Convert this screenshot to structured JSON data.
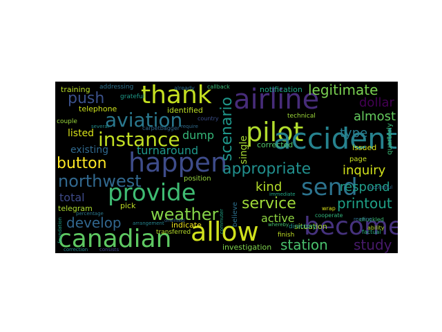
{
  "wordcloud": {
    "background": "#000000",
    "words": [
      {
        "text": "thank",
        "color": "#c5e021"
      },
      {
        "text": "airline",
        "color": "#472c7a"
      },
      {
        "text": "push",
        "color": "#3b518b"
      },
      {
        "text": "aviation",
        "color": "#2a788e"
      },
      {
        "text": "pilot",
        "color": "#b2dd2d"
      },
      {
        "text": "accident",
        "color": "#26828e"
      },
      {
        "text": "instance",
        "color": "#c2df23"
      },
      {
        "text": "happen",
        "color": "#3e4c8a"
      },
      {
        "text": "button",
        "color": "#fde725"
      },
      {
        "text": "northwest",
        "color": "#31688e"
      },
      {
        "text": "provide",
        "color": "#3fbc73"
      },
      {
        "text": "send",
        "color": "#2c738e"
      },
      {
        "text": "appropriate",
        "color": "#218f8d"
      },
      {
        "text": "scenario",
        "color": "#1f978b"
      },
      {
        "text": "weather",
        "color": "#86d549"
      },
      {
        "text": "allow",
        "color": "#d0e11c"
      },
      {
        "text": "canadian",
        "color": "#5ec962"
      },
      {
        "text": "become",
        "color": "#46327e"
      },
      {
        "text": "service",
        "color": "#a0da39"
      },
      {
        "text": "develop",
        "color": "#31668e"
      },
      {
        "text": "legitimate",
        "color": "#7ad151"
      },
      {
        "text": "dollar",
        "color": "#440154"
      },
      {
        "text": "almost",
        "color": "#65cb5e"
      },
      {
        "text": "type",
        "color": "#287c8e"
      },
      {
        "text": "inquiry",
        "color": "#d2e21b"
      },
      {
        "text": "respond",
        "color": "#1f9e89"
      },
      {
        "text": "printout",
        "color": "#1fa187"
      },
      {
        "text": "station",
        "color": "#4ac16d"
      },
      {
        "text": "study",
        "color": "#481a6c"
      },
      {
        "text": "kind",
        "color": "#b5de2b"
      },
      {
        "text": "total",
        "color": "#3e4a89"
      },
      {
        "text": "active",
        "color": "#90d743"
      },
      {
        "text": "dump",
        "color": "#35b779"
      },
      {
        "text": "turnaround",
        "color": "#1f988b"
      },
      {
        "text": "listed",
        "color": "#d8e219"
      },
      {
        "text": "existing",
        "color": "#30698e"
      },
      {
        "text": "single",
        "color": "#a8db34"
      },
      {
        "text": "investigation",
        "color": "#7fd34e"
      },
      {
        "text": "telegram",
        "color": "#addc30"
      },
      {
        "text": "pick",
        "color": "#c0df25"
      },
      {
        "text": "indicate",
        "color": "#f1e51d"
      },
      {
        "text": "position",
        "color": "#97d83f"
      },
      {
        "text": "identified",
        "color": "#bddf26"
      },
      {
        "text": "telephone",
        "color": "#cde11d"
      },
      {
        "text": "training",
        "color": "#bade28"
      },
      {
        "text": "addressing",
        "color": "#2d718e"
      },
      {
        "text": "grateful",
        "color": "#1e9b8a"
      },
      {
        "text": "notification",
        "color": "#22a884"
      },
      {
        "text": "technical",
        "color": "#9fda3a"
      },
      {
        "text": "situation",
        "color": "#a5db36"
      },
      {
        "text": "corrected",
        "color": "#52c569"
      },
      {
        "text": "issued",
        "color": "#dde318"
      },
      {
        "text": "quarterly",
        "color": "#3aba76"
      },
      {
        "text": "page",
        "color": "#c8e020"
      },
      {
        "text": "finish",
        "color": "#c0df25"
      },
      {
        "text": "directory",
        "color": "#20928c"
      },
      {
        "text": "believe",
        "color": "#2d708e"
      },
      {
        "text": "couple",
        "color": "#9bd93c"
      },
      {
        "text": "transferred",
        "color": "#b8de29"
      },
      {
        "text": "callback",
        "color": "#3aba76"
      },
      {
        "text": "already",
        "color": "#2e6f8e"
      },
      {
        "text": "country",
        "color": "#3c4f8a"
      },
      {
        "text": "carpetbagger",
        "color": "#31688e"
      },
      {
        "text": "chuckled",
        "color": "#3bbb75"
      },
      {
        "text": "cooperate",
        "color": "#31b57b"
      },
      {
        "text": "factual",
        "color": "#2ab07f"
      },
      {
        "text": "successful",
        "color": "#2f6c8e"
      },
      {
        "text": "ability",
        "color": "#b2dd2d"
      },
      {
        "text": "reading",
        "color": "#2e6e8e"
      },
      {
        "text": "wrap",
        "color": "#dae319"
      },
      {
        "text": "percentage",
        "color": "#2a788e"
      },
      {
        "text": "arrangement",
        "color": "#25838e"
      },
      {
        "text": "consists",
        "color": "#3f4788"
      },
      {
        "text": "correction",
        "color": "#23898e"
      },
      {
        "text": "foundation",
        "color": "#1fa088"
      },
      {
        "text": "whereby",
        "color": "#44bf70"
      },
      {
        "text": "immediate",
        "color": "#22a785"
      },
      {
        "text": "require",
        "color": "#2f6b8e"
      },
      {
        "text": "several",
        "color": "#228d8d"
      },
      {
        "text": "oriented",
        "color": "#32658e"
      },
      {
        "text": "commuter",
        "color": "#20a486"
      }
    ]
  }
}
